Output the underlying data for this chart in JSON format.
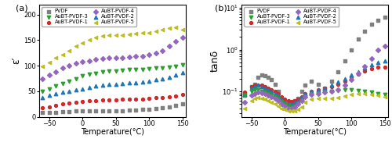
{
  "temp_a": [
    -60,
    -50,
    -40,
    -30,
    -20,
    -10,
    0,
    10,
    20,
    30,
    40,
    50,
    60,
    70,
    80,
    90,
    100,
    110,
    120,
    130,
    140,
    150
  ],
  "PVDF_a": [
    8,
    9,
    9,
    10,
    10,
    11,
    12,
    12,
    12,
    12,
    12,
    12,
    12,
    13,
    13,
    14,
    15,
    16,
    18,
    20,
    22,
    25
  ],
  "AuBT1_a": [
    18,
    20,
    22,
    25,
    27,
    28,
    30,
    31,
    32,
    33,
    33,
    33,
    34,
    34,
    35,
    35,
    36,
    37,
    38,
    39,
    41,
    43
  ],
  "AuBT2_a": [
    38,
    42,
    45,
    48,
    50,
    53,
    55,
    57,
    60,
    62,
    63,
    63,
    65,
    66,
    67,
    68,
    70,
    73,
    75,
    78,
    82,
    87
  ],
  "AuBT3_a": [
    50,
    55,
    60,
    65,
    70,
    75,
    80,
    83,
    85,
    88,
    90,
    90,
    91,
    92,
    93,
    93,
    94,
    95,
    96,
    97,
    99,
    101
  ],
  "AuBT4_a": [
    75,
    82,
    88,
    95,
    100,
    105,
    108,
    110,
    112,
    114,
    115,
    115,
    116,
    117,
    118,
    119,
    121,
    125,
    130,
    138,
    148,
    155
  ],
  "AuBT5_a": [
    98,
    107,
    115,
    122,
    130,
    138,
    145,
    150,
    155,
    158,
    160,
    160,
    160,
    162,
    163,
    164,
    165,
    168,
    171,
    174,
    175,
    170
  ],
  "temp_b": [
    -60,
    -50,
    -45,
    -40,
    -35,
    -30,
    -25,
    -20,
    -15,
    -10,
    -5,
    0,
    5,
    10,
    15,
    20,
    25,
    30,
    40,
    50,
    60,
    70,
    80,
    90,
    100,
    110,
    120,
    130,
    140,
    150
  ],
  "PVDF_b": [
    0.08,
    0.13,
    0.15,
    0.22,
    0.25,
    0.24,
    0.22,
    0.19,
    0.15,
    0.1,
    0.07,
    0.06,
    0.05,
    0.05,
    0.06,
    0.07,
    0.1,
    0.14,
    0.18,
    0.15,
    0.12,
    0.18,
    0.3,
    0.55,
    1.0,
    1.8,
    2.8,
    4.0,
    5.0,
    6.0
  ],
  "AuBT1_b": [
    0.095,
    0.13,
    0.14,
    0.14,
    0.14,
    0.13,
    0.12,
    0.11,
    0.1,
    0.09,
    0.075,
    0.065,
    0.06,
    0.058,
    0.06,
    0.065,
    0.075,
    0.09,
    0.1,
    0.11,
    0.12,
    0.13,
    0.15,
    0.18,
    0.22,
    0.26,
    0.31,
    0.35,
    0.38,
    0.38
  ],
  "AuBT2_b": [
    0.085,
    0.12,
    0.13,
    0.14,
    0.13,
    0.12,
    0.11,
    0.1,
    0.09,
    0.08,
    0.065,
    0.055,
    0.05,
    0.05,
    0.055,
    0.06,
    0.075,
    0.09,
    0.1,
    0.11,
    0.12,
    0.14,
    0.17,
    0.2,
    0.25,
    0.3,
    0.37,
    0.43,
    0.5,
    0.55
  ],
  "AuBT3_b": [
    0.08,
    0.1,
    0.11,
    0.11,
    0.1,
    0.095,
    0.09,
    0.082,
    0.075,
    0.068,
    0.058,
    0.05,
    0.045,
    0.043,
    0.045,
    0.05,
    0.06,
    0.075,
    0.085,
    0.09,
    0.095,
    0.1,
    0.105,
    0.11,
    0.11,
    0.105,
    0.1,
    0.095,
    0.09,
    0.085
  ],
  "AuBT4_b": [
    0.055,
    0.08,
    0.09,
    0.095,
    0.092,
    0.088,
    0.082,
    0.075,
    0.068,
    0.06,
    0.052,
    0.045,
    0.04,
    0.04,
    0.043,
    0.05,
    0.06,
    0.075,
    0.085,
    0.09,
    0.095,
    0.1,
    0.11,
    0.14,
    0.19,
    0.27,
    0.4,
    0.62,
    1.0,
    1.2
  ],
  "AuBT5_b": [
    0.04,
    0.06,
    0.068,
    0.072,
    0.07,
    0.066,
    0.06,
    0.055,
    0.05,
    0.045,
    0.04,
    0.037,
    0.035,
    0.034,
    0.035,
    0.038,
    0.043,
    0.055,
    0.065,
    0.068,
    0.068,
    0.07,
    0.073,
    0.078,
    0.085,
    0.09,
    0.09,
    0.085,
    0.082,
    0.075
  ],
  "colors": [
    "#7f7f7f",
    "#d62728",
    "#1f77b4",
    "#2ca02c",
    "#9467bd",
    "#bcbd22"
  ],
  "markers": [
    "s",
    "o",
    "^",
    "v",
    "D",
    "<"
  ],
  "labels": [
    "PVDF",
    "AuBT-PVDF-1",
    "AuBT-PVDF-2",
    "AuBT-PVDF-3",
    "AuBT-PVDF-4",
    "AuBT-PVDF-5"
  ],
  "xlabel": "Temperature(°C)",
  "ylabel_a": "ε′",
  "ylabel_b": "tanδ",
  "xlim": [
    -65,
    155
  ],
  "ylim_a": [
    0,
    220
  ],
  "ylim_b_log": [
    0.025,
    12
  ]
}
